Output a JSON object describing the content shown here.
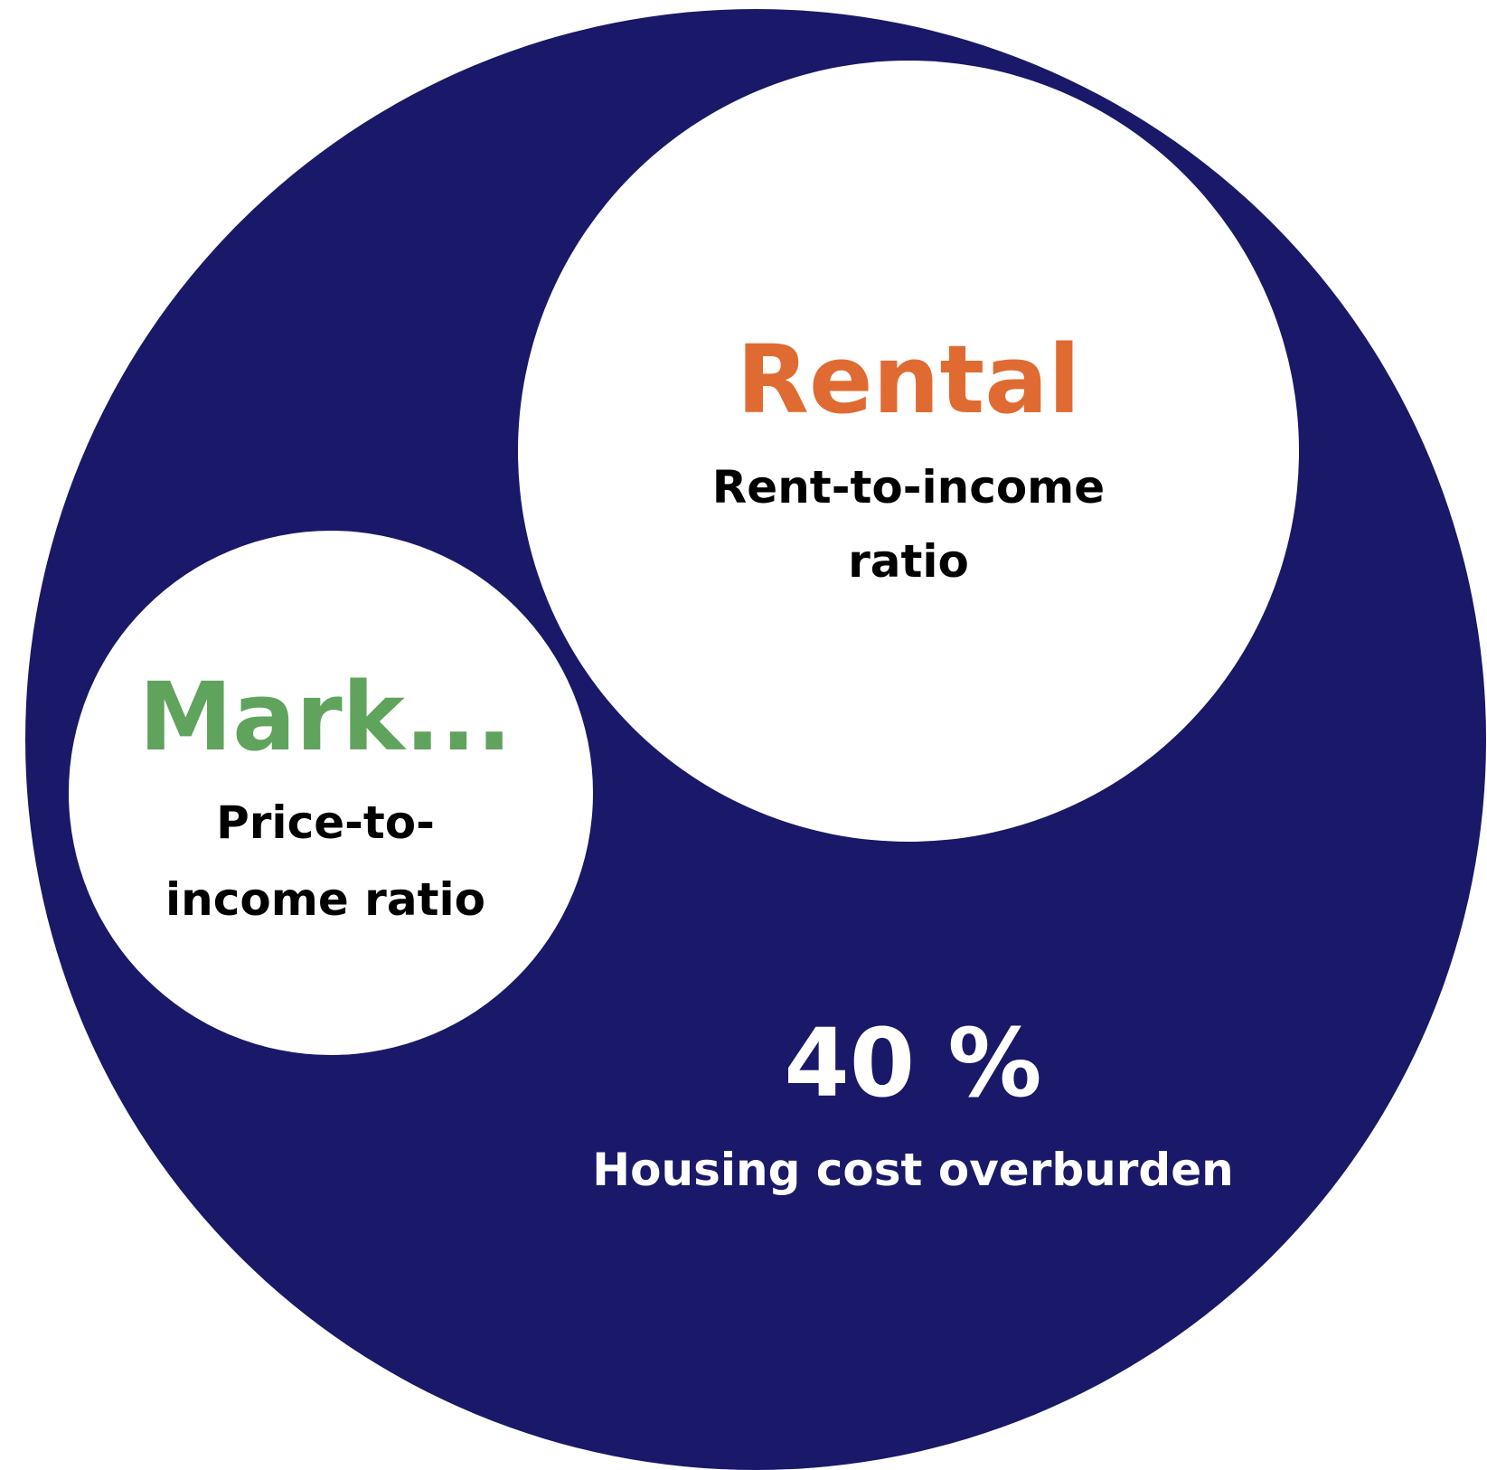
{
  "outer": {
    "value_label": "40 %",
    "label": "Housing cost overburden"
  },
  "nodes": [
    {
      "title": "Rental",
      "label_lines": [
        "Rent-to-income",
        "ratio"
      ]
    },
    {
      "title": "Mark...",
      "label_lines": [
        "Price-to-",
        "income ratio"
      ]
    }
  ]
}
